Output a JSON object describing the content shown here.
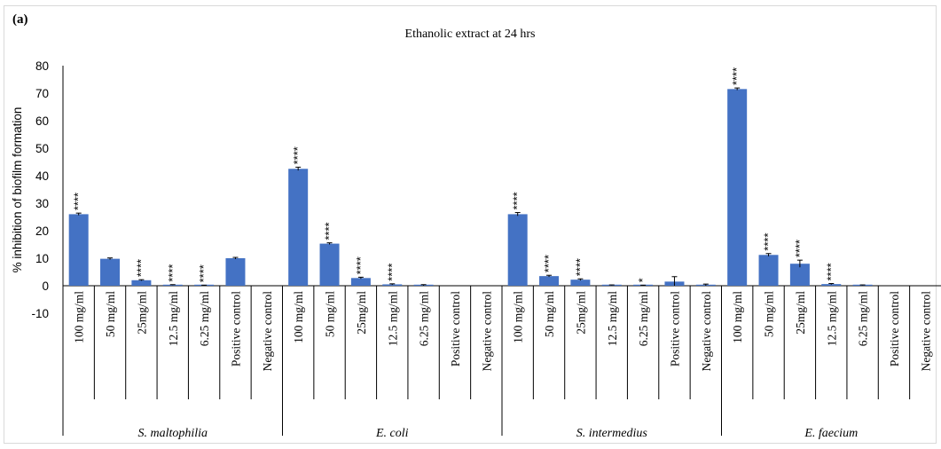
{
  "chart_data": {
    "type": "bar",
    "panel_label": "(a)",
    "title": "Ethanolic extract at 24 hrs",
    "xlabel": "",
    "ylabel": "% inhibition of biofilm formation",
    "ylim": [
      -10,
      80
    ],
    "yticks": [
      "80",
      "70",
      "60",
      "50",
      "40",
      "30",
      "20",
      "10",
      "0",
      "-10"
    ],
    "grid": false,
    "bar_color": "#4472C4",
    "categories": [
      "100 mg/ml",
      "50 mg/ml",
      "25mg/ml",
      "12.5 mg/ml",
      "6.25 mg/ml",
      "Positive control",
      "Negative control"
    ],
    "groups": [
      {
        "name": "S. maltophilia",
        "values": [
          26,
          9.8,
          2,
          0.3,
          0.1,
          10,
          0
        ],
        "errors": [
          0.4,
          0.3,
          0.2,
          0.1,
          0.1,
          0.3,
          0
        ],
        "significance": [
          "****",
          "",
          "****",
          "****",
          "****",
          "",
          ""
        ]
      },
      {
        "name": "E. coli",
        "values": [
          42.5,
          15.3,
          2.8,
          0.5,
          0.2,
          0,
          0
        ],
        "errors": [
          0.6,
          0.3,
          0.3,
          0.2,
          0.2,
          0,
          0
        ],
        "significance": [
          "****",
          "****",
          "****",
          "****",
          "",
          "",
          ""
        ]
      },
      {
        "name": "S. intermedius",
        "values": [
          26,
          3.5,
          2.2,
          0.2,
          0.1,
          1.5,
          0.3
        ],
        "errors": [
          0.6,
          0.3,
          0.3,
          0.1,
          0.1,
          1.8,
          0.3
        ],
        "significance": [
          "****",
          "****",
          "****",
          "",
          "*",
          "",
          ""
        ]
      },
      {
        "name": "E. faecium",
        "values": [
          71.5,
          11.2,
          8,
          0.6,
          0.2,
          0,
          0
        ],
        "errors": [
          0.4,
          0.5,
          1.3,
          0.2,
          0.1,
          0,
          0
        ],
        "significance": [
          "****",
          "****",
          "****",
          "****",
          "",
          "",
          ""
        ]
      }
    ]
  }
}
